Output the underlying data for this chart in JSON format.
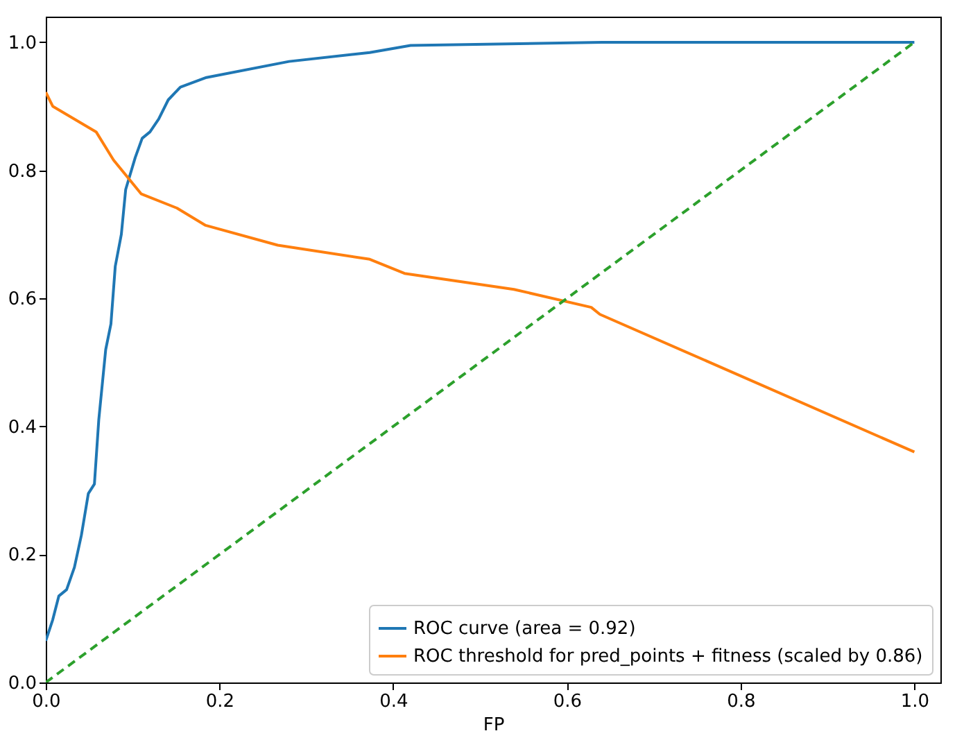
{
  "chart_data": {
    "type": "line",
    "xlabel": "FP",
    "xlim": [
      0,
      1.03
    ],
    "ylim": [
      0,
      1.04
    ],
    "xticks": [
      {
        "value": 0,
        "label": "0.0"
      },
      0.2,
      0.4,
      0.6,
      0.8,
      {
        "value": 1,
        "label": "1.0"
      }
    ],
    "yticks": [
      {
        "value": 0,
        "label": "0.0"
      },
      0.2,
      0.4,
      0.6,
      0.8,
      {
        "value": 1,
        "label": "1.0"
      }
    ],
    "legend": "bottom right",
    "grid": false,
    "series": [
      {
        "name": "ROC curve (area = 0.92)",
        "color": "#1f77b4",
        "line_style": "solid",
        "x": [
          0,
          0.008,
          0.015,
          0.024,
          0.033,
          0.041,
          0.049,
          0.056,
          0.061,
          0.069,
          0.075,
          0.08,
          0.087,
          0.092,
          0.103,
          0.111,
          0.12,
          0.13,
          0.141,
          0.155,
          0.185,
          0.28,
          0.373,
          0.42,
          0.64,
          1.0
        ],
        "values": [
          0.065,
          0.098,
          0.135,
          0.145,
          0.18,
          0.23,
          0.295,
          0.31,
          0.41,
          0.52,
          0.56,
          0.65,
          0.7,
          0.77,
          0.82,
          0.85,
          0.86,
          0.88,
          0.91,
          0.93,
          0.945,
          0.97,
          0.984,
          0.995,
          1.0,
          1.0
        ]
      },
      {
        "name": "ROC threshold for pred_points + fitness (scaled by 0.86)",
        "color": "#ff7f0e",
        "line_style": "solid",
        "x": [
          0,
          0.008,
          0.058,
          0.078,
          0.11,
          0.151,
          0.184,
          0.267,
          0.373,
          0.413,
          0.539,
          0.628,
          0.638,
          1.0
        ],
        "values": [
          0.922,
          0.9,
          0.86,
          0.816,
          0.763,
          0.741,
          0.714,
          0.683,
          0.661,
          0.639,
          0.614,
          0.586,
          0.575,
          0.36
        ]
      },
      {
        "color": "#2ca02c",
        "line_style": "dashed",
        "x": [
          0,
          1
        ],
        "values": [
          0,
          1
        ]
      }
    ]
  }
}
